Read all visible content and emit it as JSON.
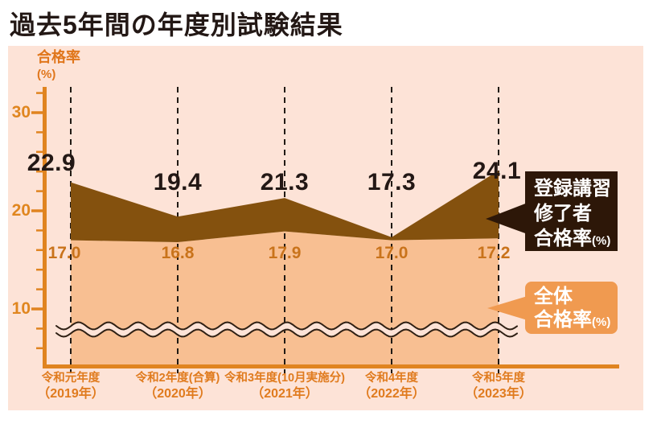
{
  "page": {
    "title": "過去5年間の年度別試験結果"
  },
  "axis": {
    "y_title": "合格率",
    "y_title_unit": "(%)"
  },
  "legend_registered": {
    "lines": [
      "登録講習",
      "修了者"
    ],
    "rate": "合格率",
    "unit": "(%)"
  },
  "legend_overall": {
    "lines": [
      "全体"
    ],
    "rate": "合格率",
    "unit": "(%)"
  },
  "colors": {
    "panel_bg": "#fde3d7",
    "axis_orange": "#e08420",
    "series_registered": "#84510e",
    "series_overall": "#f8bf92",
    "value_label_dark": "#231815",
    "value_label_orange": "#c9731b",
    "category_label": "#e07b1e",
    "legend_registered_bg": "#2d1708",
    "legend_overall_bg": "#f09a50",
    "dashed_line": "#211a14",
    "wave_stroke": "#2f2014"
  },
  "chart_data": {
    "type": "area",
    "title": "過去5年間の年度別試験結果",
    "ylabel": "合格率(%)",
    "xlabel": "",
    "categories": [
      {
        "line1": "令和元年度",
        "line2": "（2019年）"
      },
      {
        "line1": "令和2年度(合算)",
        "line2": "（2020年）"
      },
      {
        "line1": "令和3年度(10月実施分)",
        "line2": "（2021年）"
      },
      {
        "line1": "令和4年度",
        "line2": "（2022年）"
      },
      {
        "line1": "令和5年度",
        "line2": "（2023年）"
      }
    ],
    "series": [
      {
        "name": "登録講習修了者合格率(%)",
        "values": [
          22.9,
          19.4,
          21.3,
          17.3,
          24.1
        ]
      },
      {
        "name": "全体合格率(%)",
        "values": [
          17.0,
          16.8,
          17.9,
          17.0,
          17.2
        ]
      }
    ],
    "yticks_major": [
      10,
      20,
      30
    ],
    "yticks_minor": [
      6,
      8,
      12,
      14,
      16,
      18,
      22,
      24,
      26,
      28,
      32
    ],
    "ylim": [
      4,
      33
    ],
    "axis_break": true,
    "grid": "vertical-dashed",
    "legend_position": "right"
  }
}
